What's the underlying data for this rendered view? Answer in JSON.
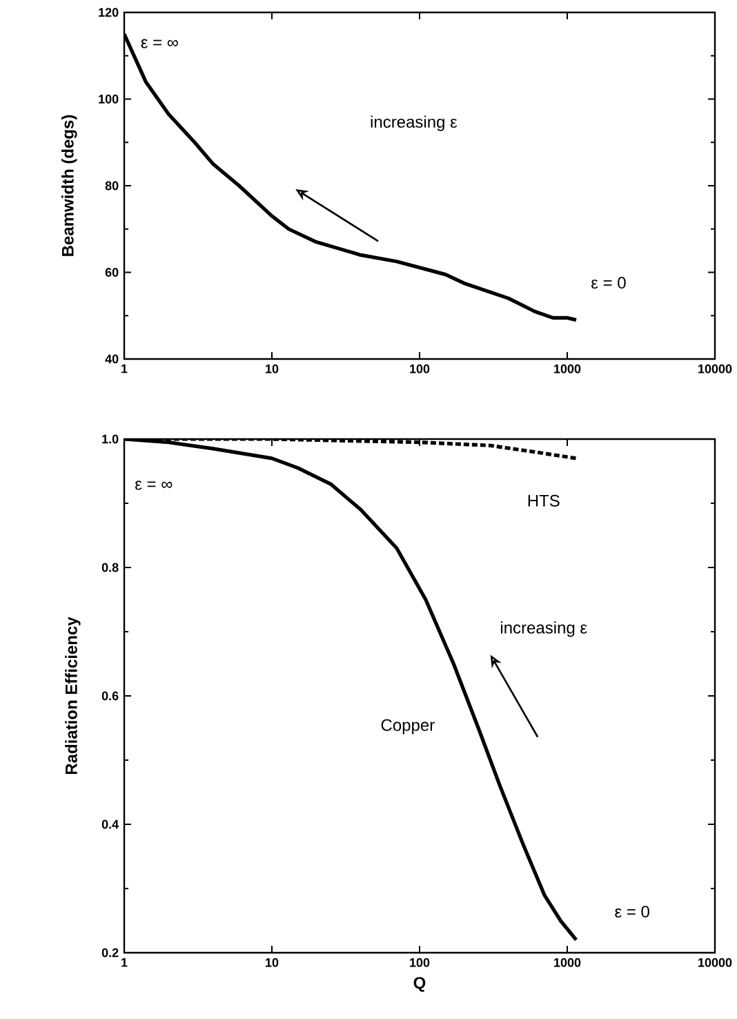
{
  "chart_data": [
    {
      "type": "line",
      "ylabel": "Beamwidth (degs)",
      "log": "x",
      "xlim": [
        1,
        10000
      ],
      "ylim": [
        40,
        120
      ],
      "xticks": [
        1,
        10,
        100,
        1000,
        10000
      ],
      "yticks": [
        40,
        60,
        80,
        100,
        120
      ],
      "grid": false,
      "marker": "none",
      "series": [
        {
          "color": "#000000",
          "line_style": "solid",
          "x": [
            1,
            1.4,
            2,
            3,
            4,
            6,
            10,
            13,
            20,
            40,
            70,
            150,
            200,
            400,
            600,
            800,
            1000,
            1150
          ],
          "values": [
            115,
            104,
            96.5,
            90,
            85,
            80,
            73,
            70,
            67,
            64,
            62.5,
            59.5,
            57.5,
            54,
            51,
            49.5,
            49.5,
            49
          ]
        }
      ],
      "annotations": [
        "ε = ∞",
        "increasing ε",
        "ε = 0"
      ]
    },
    {
      "type": "line",
      "xlabel": "Q",
      "ylabel": "Radiation Efficiency",
      "log": "x",
      "xlim": [
        1,
        10000
      ],
      "ylim": [
        0.2,
        1.0
      ],
      "xticks": [
        1,
        10,
        100,
        1000,
        10000
      ],
      "yticks": [
        {
          "value": 0.2,
          "label": "0.2"
        },
        {
          "value": 0.4,
          "label": "0.4"
        },
        {
          "value": 0.6,
          "label": "0.6"
        },
        {
          "value": 0.8,
          "label": "0.8"
        },
        {
          "value": 1.0,
          "label": "1.0"
        }
      ],
      "grid": false,
      "marker": "none",
      "series": [
        {
          "color": "#000000",
          "line_style": "solid",
          "x": [
            1,
            2,
            4,
            10,
            15,
            25,
            40,
            70,
            110,
            170,
            250,
            350,
            500,
            700,
            900,
            1150
          ],
          "values": [
            1.0,
            0.995,
            0.985,
            0.97,
            0.955,
            0.93,
            0.89,
            0.83,
            0.75,
            0.65,
            0.55,
            0.46,
            0.37,
            0.29,
            0.25,
            0.22
          ]
        },
        {
          "color": "#000000",
          "line_style": "dashed",
          "x": [
            1,
            10,
            100,
            300,
            600,
            1150
          ],
          "values": [
            1.0,
            1.0,
            0.995,
            0.99,
            0.98,
            0.97
          ]
        }
      ],
      "annotations": [
        "ε = ∞",
        "HTS",
        "Copper",
        "increasing ε",
        "ε = 0"
      ]
    }
  ]
}
